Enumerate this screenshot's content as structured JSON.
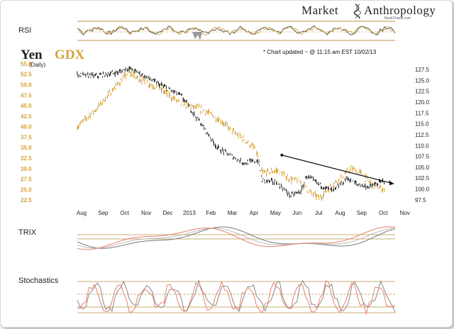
{
  "brand": {
    "word1": "Market",
    "word2": "Anthropology",
    "sub": "StockCharts.com"
  },
  "note": "* Chart updated ~ @ 11:15 am EST 10/02/13",
  "panels": {
    "rsi": "RSI",
    "trix": "TRIX",
    "stoch": "Stochastics"
  },
  "colors": {
    "yen": "#1a1a1a",
    "gdx": "#d4a23c",
    "trend": "#111111",
    "trix_fast": "#e8806a",
    "band": "#b8934a",
    "bg": "#ffffff"
  },
  "chart_data": {
    "type": "line",
    "title": "Yen GDX",
    "title_parts": [
      "Yen",
      "GDX"
    ],
    "subtitle": "(Daily)",
    "x_labels": [
      "Aug",
      "Sep",
      "Oct",
      "Nov",
      "Dec",
      "2013",
      "Feb",
      "Mar",
      "Apr",
      "May",
      "Jun",
      "Jul",
      "Aug",
      "Sep",
      "Oct",
      "Nov"
    ],
    "x_range": [
      "2012-07-20",
      "2013-11-10"
    ],
    "left_axis": {
      "series": "GDX",
      "ticks": [
        55.0,
        52.5,
        50.0,
        47.5,
        45.0,
        42.5,
        40.0,
        37.5,
        35.0,
        32.5,
        30.0,
        27.5,
        25.0,
        22.5
      ],
      "range": [
        21.5,
        55.5
      ]
    },
    "right_axis": {
      "series": "Yen",
      "ticks": [
        127.5,
        125.0,
        122.5,
        120.0,
        117.5,
        115.0,
        112.5,
        110.0,
        107.5,
        105.0,
        102.5,
        100.0,
        97.5
      ],
      "range": [
        96.5,
        129.3
      ]
    },
    "series": [
      {
        "name": "Yen",
        "axis": "right",
        "points": [
          [
            "2012-07-20",
            126.3
          ],
          [
            "2012-08-15",
            126.0
          ],
          [
            "2012-09-15",
            126.8
          ],
          [
            "2012-10-01",
            127.8
          ],
          [
            "2012-10-15",
            126.8
          ],
          [
            "2012-11-15",
            124.0
          ],
          [
            "2012-12-15",
            121.5
          ],
          [
            "2013-01-15",
            114.5
          ],
          [
            "2013-02-05",
            109.5
          ],
          [
            "2013-02-20",
            108.0
          ],
          [
            "2013-03-15",
            106.0
          ],
          [
            "2013-04-04",
            106.5
          ],
          [
            "2013-04-10",
            102.0
          ],
          [
            "2013-05-01",
            101.5
          ],
          [
            "2013-05-20",
            98.5
          ],
          [
            "2013-06-05",
            99.5
          ],
          [
            "2013-06-12",
            103.0
          ],
          [
            "2013-07-01",
            101.0
          ],
          [
            "2013-07-20",
            99.5
          ],
          [
            "2013-08-10",
            102.5
          ],
          [
            "2013-08-25",
            101.0
          ],
          [
            "2013-09-10",
            100.5
          ],
          [
            "2013-09-25",
            101.5
          ],
          [
            "2013-10-02",
            102.0
          ]
        ]
      },
      {
        "name": "GDX",
        "axis": "left",
        "points": [
          [
            "2012-07-20",
            40.0
          ],
          [
            "2012-08-15",
            44.0
          ],
          [
            "2012-09-15",
            50.0
          ],
          [
            "2012-10-01",
            53.0
          ],
          [
            "2012-10-15",
            51.5
          ],
          [
            "2012-11-15",
            49.0
          ],
          [
            "2012-12-15",
            45.5
          ],
          [
            "2013-01-15",
            44.0
          ],
          [
            "2013-02-10",
            41.5
          ],
          [
            "2013-02-25",
            39.0
          ],
          [
            "2013-03-15",
            37.0
          ],
          [
            "2013-04-01",
            34.5
          ],
          [
            "2013-04-10",
            29.0
          ],
          [
            "2013-05-01",
            29.5
          ],
          [
            "2013-05-20",
            27.5
          ],
          [
            "2013-06-01",
            27.0
          ],
          [
            "2013-06-20",
            24.0
          ],
          [
            "2013-07-01",
            23.0
          ],
          [
            "2013-07-25",
            27.0
          ],
          [
            "2013-08-15",
            30.0
          ],
          [
            "2013-08-28",
            29.0
          ],
          [
            "2013-09-15",
            26.0
          ],
          [
            "2013-10-02",
            25.0
          ]
        ]
      }
    ],
    "trendline": {
      "axis": "right",
      "from": [
        "2013-05-08",
        107.8
      ],
      "to": [
        "2013-10-15",
        101.2
      ]
    },
    "grid": false
  }
}
